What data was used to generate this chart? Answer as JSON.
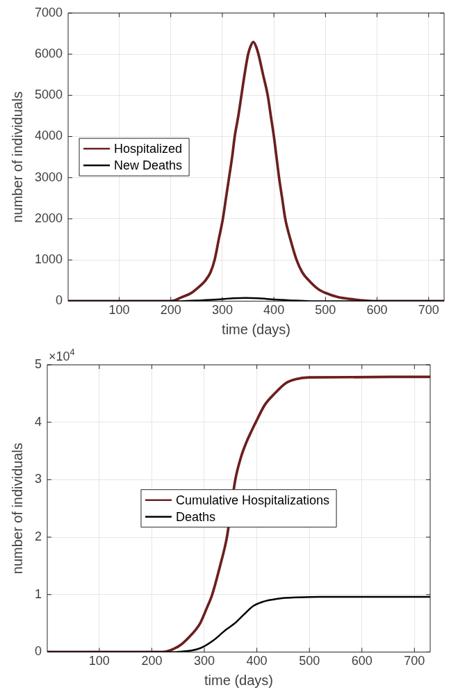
{
  "chart_data": [
    {
      "type": "line",
      "xlabel": "time (days)",
      "ylabel": "number of individuals",
      "xlim": [
        1,
        730
      ],
      "xticks": [
        100,
        200,
        300,
        400,
        500,
        600,
        700
      ],
      "ylim": [
        0,
        7000
      ],
      "yticks": [
        0,
        1000,
        2000,
        3000,
        4000,
        5000,
        6000,
        7000
      ],
      "grid": true,
      "legend": "left",
      "series": [
        {
          "name": "Hospitalized",
          "color": "#6b1f1f",
          "x": [
            1,
            150,
            200,
            222,
            240,
            255,
            267,
            277,
            285,
            293,
            301,
            307,
            313,
            319,
            324,
            331,
            337,
            343,
            350,
            355,
            360,
            365,
            370,
            379,
            388,
            394,
            400,
            405,
            410,
            416,
            422,
            432,
            444,
            455,
            468,
            485,
            500,
            524,
            550,
            600,
            730
          ],
          "values": [
            0,
            0,
            0,
            100,
            200,
            350,
            500,
            700,
            1000,
            1500,
            2000,
            2500,
            3000,
            3500,
            4000,
            4500,
            5000,
            5500,
            6000,
            6200,
            6300,
            6200,
            6000,
            5500,
            5000,
            4500,
            4000,
            3500,
            3000,
            2500,
            2000,
            1500,
            1000,
            700,
            500,
            300,
            200,
            100,
            50,
            0,
            0
          ]
        },
        {
          "name": "New Deaths",
          "color": "#000000",
          "x": [
            1,
            220,
            260,
            290,
            320,
            346,
            370,
            400,
            430,
            470,
            730
          ],
          "values": [
            0,
            0,
            20,
            40,
            70,
            80,
            70,
            40,
            20,
            0,
            0
          ]
        }
      ]
    },
    {
      "type": "line",
      "xlabel": "time (days)",
      "ylabel": "number of individuals",
      "annotations": [
        "×10$^{4}$"
      ],
      "xlim": [
        1,
        730
      ],
      "xticks": [
        100,
        200,
        300,
        400,
        500,
        600,
        700
      ],
      "ylim": [
        0,
        5
      ],
      "yticks": [
        0,
        1,
        2,
        3,
        4,
        5
      ],
      "grid": true,
      "legend": "center",
      "series": [
        {
          "name": "Cumulative Hospitalizations",
          "color": "#6b1f1f",
          "x": [
            1,
            220,
            251,
            270,
            292,
            304,
            315,
            330,
            343,
            359,
            370,
            380,
            390,
            398,
            415,
            434,
            455,
            474,
            500,
            730
          ],
          "values": [
            0,
            0,
            0.1,
            0.25,
            0.5,
            0.75,
            1,
            1.5,
            2,
            3,
            3.4,
            3.65,
            3.85,
            4,
            4.3,
            4.5,
            4.68,
            4.75,
            4.78,
            4.79
          ]
        },
        {
          "name": "Deaths",
          "color": "#000000",
          "x": [
            1,
            240,
            260,
            287,
            300,
            317,
            330,
            340,
            358,
            375,
            393,
            410,
            428,
            450,
            474,
            520,
            730
          ],
          "values": [
            0,
            0,
            0.01,
            0.05,
            0.1,
            0.2,
            0.3,
            0.38,
            0.5,
            0.65,
            0.8,
            0.87,
            0.91,
            0.94,
            0.95,
            0.96,
            0.96
          ]
        }
      ]
    }
  ]
}
